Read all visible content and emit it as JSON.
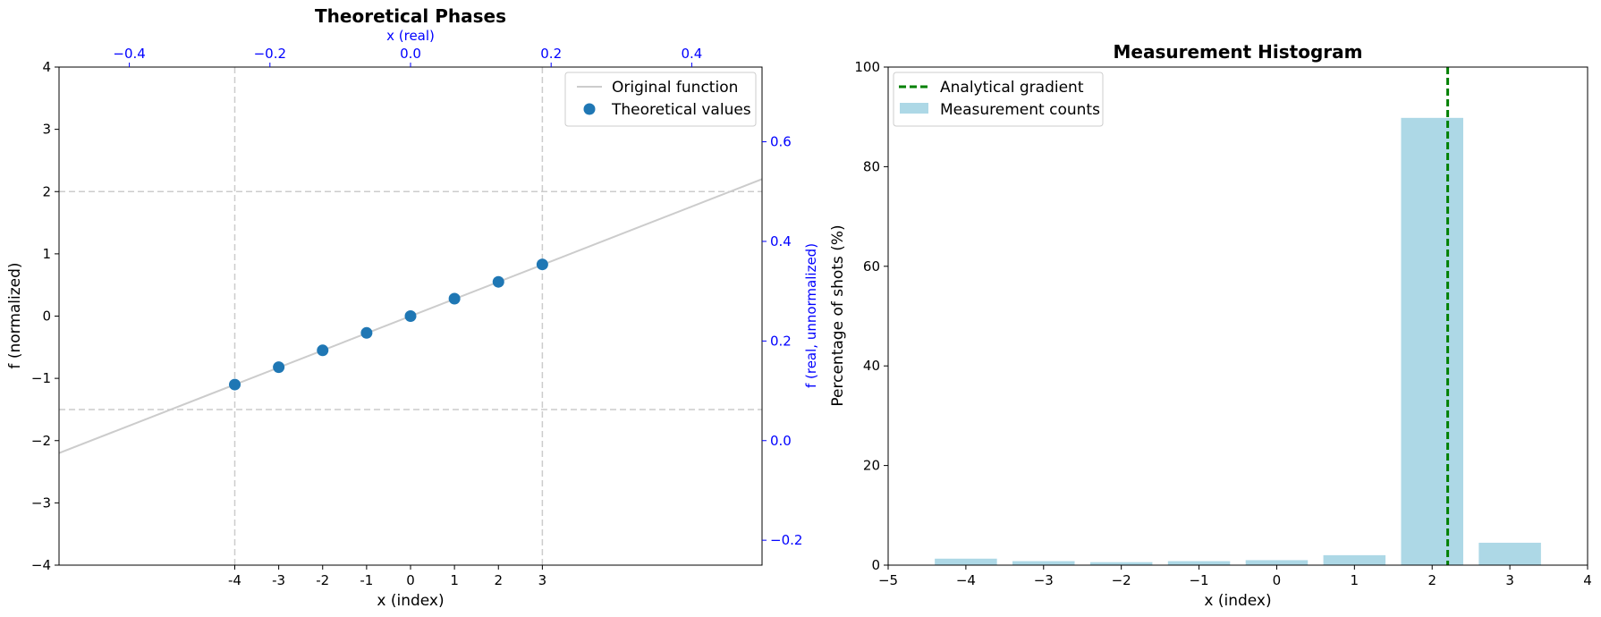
{
  "chart_data": [
    {
      "type": "scatter",
      "title": "Theoretical Phases",
      "xlabel": "x (index)",
      "ylabel": "f (normalized)",
      "top_xlabel": "x (real)",
      "right_ylabel": "f (real, unnormalized)",
      "xlim": [
        -8,
        8
      ],
      "ylim": [
        -4,
        4
      ],
      "x_ticks": [
        -4,
        -3,
        -2,
        -1,
        0,
        1,
        2,
        3
      ],
      "x_tick_labels": [
        "-4",
        "-3",
        "-2",
        "-1",
        "0",
        "1",
        "2",
        "3"
      ],
      "y_ticks": [
        -4,
        -3,
        -2,
        -1,
        0,
        1,
        2,
        3,
        4
      ],
      "y_tick_labels": [
        "−4",
        "−3",
        "−2",
        "−1",
        "0",
        "1",
        "2",
        "3",
        "4"
      ],
      "top_axis": {
        "lim": [
          -0.5,
          0.5
        ],
        "ticks": [
          -0.4,
          -0.2,
          0.0,
          0.2,
          0.4
        ],
        "tick_labels": [
          "−0.4",
          "−0.2",
          "0.0",
          "0.2",
          "0.4"
        ]
      },
      "right_axis": {
        "lim": [
          -0.25,
          0.75
        ],
        "ticks": [
          -0.2,
          0.0,
          0.2,
          0.4,
          0.6
        ],
        "tick_labels": [
          "−0.2",
          "0.0",
          "0.2",
          "0.4",
          "0.6"
        ]
      },
      "reference_lines": {
        "vertical_x": [
          -4,
          3
        ],
        "horizontal_y": [
          2,
          -1.5
        ]
      },
      "series": [
        {
          "name": "Original function",
          "kind": "line",
          "x": [
            -8,
            8
          ],
          "y": [
            -2.2,
            2.2
          ],
          "color": "#cccccc"
        },
        {
          "name": "Theoretical values",
          "kind": "scatter",
          "x": [
            -4,
            -3,
            -2,
            -1,
            0,
            1,
            2,
            3
          ],
          "y": [
            -1.1,
            -0.82,
            -0.55,
            -0.27,
            0.0,
            0.28,
            0.55,
            0.83
          ],
          "color": "#1f77b4"
        }
      ],
      "legend_position": "top-right",
      "grid": false
    },
    {
      "type": "bar",
      "title": "Measurement Histogram",
      "xlabel": "x (index)",
      "ylabel": "Percentage of shots (%)",
      "xlim": [
        -5,
        4
      ],
      "ylim": [
        0,
        100
      ],
      "x_ticks": [
        -5,
        -4,
        -3,
        -2,
        -1,
        0,
        1,
        2,
        3,
        4
      ],
      "x_tick_labels": [
        "−5",
        "−4",
        "−3",
        "−2",
        "−1",
        "0",
        "1",
        "2",
        "3",
        "4"
      ],
      "y_ticks": [
        0,
        20,
        40,
        60,
        80,
        100
      ],
      "y_tick_labels": [
        "0",
        "20",
        "40",
        "60",
        "80",
        "100"
      ],
      "categories": [
        -4,
        -3,
        -2,
        -1,
        0,
        1,
        2,
        3
      ],
      "series": [
        {
          "name": "Measurement counts",
          "values": [
            1.3,
            0.8,
            0.6,
            0.8,
            1.0,
            2.0,
            89.8,
            4.5
          ],
          "color": "#add8e6"
        }
      ],
      "analytical_gradient": {
        "name": "Analytical gradient",
        "x": 2.2,
        "color": "#008000"
      },
      "legend_position": "top-left",
      "grid": false
    }
  ]
}
